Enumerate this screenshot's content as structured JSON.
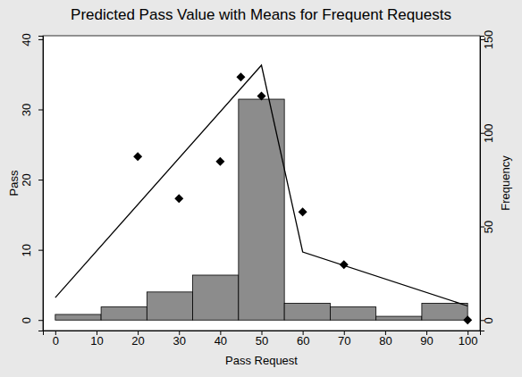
{
  "chart_data": {
    "type": "combo",
    "title": "Predicted Pass Value with Means for Frequent Requests",
    "x_label": "Pass Request",
    "y_label": "Pass",
    "y2_label": "Frequency",
    "xlim": [
      -3,
      103
    ],
    "xticks": [
      0,
      10,
      20,
      30,
      40,
      50,
      60,
      70,
      80,
      90,
      100
    ],
    "ylim": [
      -1.5,
      40.5
    ],
    "yticks": [
      0,
      10,
      20,
      30,
      40
    ],
    "y2lim": [
      -5.6,
      151.9
    ],
    "y2ticks": [
      0,
      50,
      100,
      150
    ],
    "series": [
      {
        "type": "histogram",
        "axis": "y2",
        "color": "#8c8c8c",
        "bins": [
          0,
          11.11,
          22.22,
          33.33,
          44.44,
          55.56,
          66.67,
          77.78,
          88.89,
          100
        ],
        "values": [
          3,
          7,
          15,
          24,
          118,
          9,
          7,
          2,
          9
        ]
      },
      {
        "type": "scatter",
        "marker": "diamond",
        "color": "#000000",
        "x": [
          20,
          30,
          40,
          45,
          50,
          60,
          70,
          100
        ],
        "values": [
          23.3,
          17.3,
          22.6,
          34.6,
          31.9,
          15.4,
          7.9,
          0
        ]
      },
      {
        "type": "line",
        "line_style": "solid",
        "color": "#000000",
        "x": [
          0,
          50,
          60,
          100
        ],
        "values": [
          3.2,
          36.3,
          9.7,
          2.0
        ]
      }
    ]
  }
}
